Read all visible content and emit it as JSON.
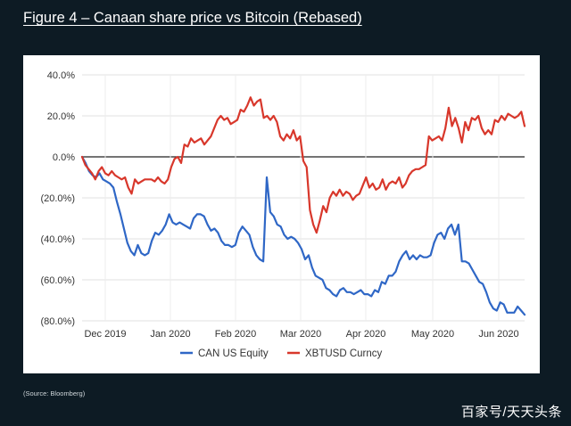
{
  "title": "Figure 4 – Canaan share price vs Bitcoin (Rebased)",
  "source": "(Source: Bloomberg)",
  "watermark": "百家号/天天头条",
  "chart_data": {
    "type": "line",
    "yticks": [
      "40.0%",
      "20.0%",
      "0.0%",
      "(20.0%)",
      "(40.0%)",
      "(60.0%)",
      "(80.0%)"
    ],
    "ylim": [
      -80,
      40
    ],
    "xticks": [
      "Dec 2019",
      "Jan 2020",
      "Feb 2020",
      "Mar 2020",
      "Apr 2020",
      "May 2020",
      "Jun 2020"
    ],
    "legend_position": "bottom",
    "grid": "horizontal",
    "series": [
      {
        "name": "CAN US Equity",
        "color": "#2f67c6",
        "values": [
          0.0,
          -3,
          -7,
          -9,
          -10,
          -8,
          -11,
          -12,
          -13,
          -15,
          -22,
          -28,
          -35,
          -42,
          -46,
          -48,
          -43,
          -47,
          -48,
          -47,
          -41,
          -37,
          -38,
          -36,
          -33,
          -28,
          -32,
          -33,
          -32,
          -33,
          -34,
          -35,
          -30,
          -28,
          -28,
          -29,
          -33,
          -36,
          -35,
          -37,
          -41,
          -43,
          -43,
          -44,
          -43,
          -37,
          -34,
          -36,
          -38,
          -44,
          -48,
          -50,
          -51,
          -10,
          -27,
          -29,
          -33,
          -34,
          -38,
          -40,
          -39,
          -40,
          -42,
          -45,
          -50,
          -48,
          -54,
          -58,
          -59,
          -60,
          -64,
          -65,
          -67,
          -68,
          -65,
          -64,
          -66,
          -66,
          -67,
          -66,
          -65,
          -67,
          -67,
          -68,
          -65,
          -66,
          -61,
          -62,
          -58,
          -58,
          -56,
          -51,
          -48,
          -46,
          -50,
          -48,
          -50,
          -48,
          -49,
          -49,
          -48,
          -42,
          -38,
          -37,
          -40,
          -35,
          -33,
          -38,
          -33,
          -51,
          -51,
          -52,
          -55,
          -58,
          -61,
          -62,
          -66,
          -71,
          -74,
          -75,
          -71,
          -72,
          -76,
          -76,
          -76,
          -73,
          -75,
          -77
        ]
      },
      {
        "name": "XBTUSD Curncy",
        "color": "#d8372b",
        "values": [
          0.0,
          -4,
          -6,
          -8,
          -11,
          -7,
          -5,
          -8,
          -9,
          -7,
          -9,
          -10,
          -11,
          -10,
          -15,
          -18,
          -11,
          -13,
          -12,
          -11,
          -11,
          -11,
          -12,
          -10,
          -12,
          -13,
          -11,
          -5,
          -1,
          0,
          -3,
          6,
          5,
          9,
          7,
          8,
          9,
          6,
          8,
          10,
          14,
          18,
          20,
          18,
          19,
          16,
          17,
          18,
          23,
          22,
          25,
          29,
          25,
          27,
          28,
          19,
          20,
          18,
          20,
          17,
          10,
          8,
          11,
          9,
          13,
          8,
          10,
          -2,
          -5,
          -26,
          -33,
          -37,
          -31,
          -24,
          -27,
          -20,
          -17,
          -19,
          -16,
          -19,
          -17,
          -18,
          -21,
          -19,
          -18,
          -14,
          -10,
          -15,
          -13,
          -16,
          -15,
          -11,
          -16,
          -13,
          -12,
          -13,
          -10,
          -15,
          -13,
          -9,
          -7,
          -6,
          -6,
          -5,
          -4,
          10,
          8,
          9,
          10,
          8,
          14,
          24,
          15,
          19,
          14,
          7,
          17,
          13,
          19,
          18,
          20,
          14,
          11,
          13,
          11,
          18,
          17,
          20,
          18,
          21,
          20,
          19,
          20,
          22,
          15
        ]
      }
    ]
  }
}
